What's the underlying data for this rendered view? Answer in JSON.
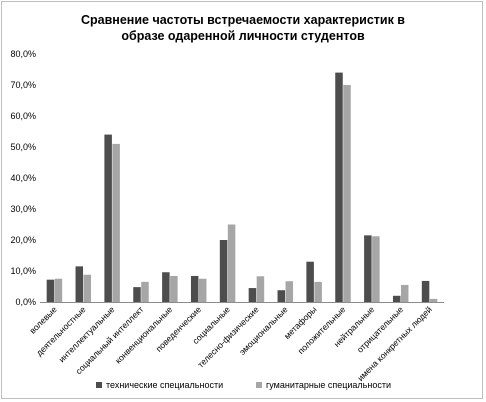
{
  "chart_data": {
    "type": "bar",
    "title_lines": [
      "Сравнение частоты встречаемости характеристик  в",
      "образе одаренной личности  студентов"
    ],
    "categories": [
      "волевые",
      "деятельностные",
      "интеллектуальные",
      "социальный интеллект",
      "конвенциональные",
      "поведенческие",
      "социальные",
      "телесно-физические",
      "эмоциональные",
      "метафоры",
      "положительные",
      "нейтральные",
      "отрицательные",
      "имена конкретных людей"
    ],
    "series": [
      {
        "name": "технические специальности",
        "color": "#4d4d4d",
        "values": [
          7.2,
          11.5,
          54.0,
          4.8,
          9.6,
          8.4,
          20.0,
          4.5,
          3.8,
          13.0,
          74.0,
          21.5,
          2.0,
          6.8
        ]
      },
      {
        "name": "гуманитарные специальности",
        "color": "#a6a6a6",
        "values": [
          7.5,
          8.8,
          51.0,
          6.5,
          8.4,
          7.5,
          25.0,
          8.3,
          6.7,
          6.5,
          70.0,
          21.2,
          5.5,
          1.0
        ]
      }
    ],
    "ylim": [
      0,
      80
    ],
    "yticks": [
      0,
      10,
      20,
      30,
      40,
      50,
      60,
      70,
      80
    ],
    "ytick_labels": [
      "0,0%",
      "10,0%",
      "20,0%",
      "30,0%",
      "40,0%",
      "50,0%",
      "60,0%",
      "70,0%",
      "80,0%"
    ],
    "grid": false,
    "legend_position": "bottom"
  }
}
